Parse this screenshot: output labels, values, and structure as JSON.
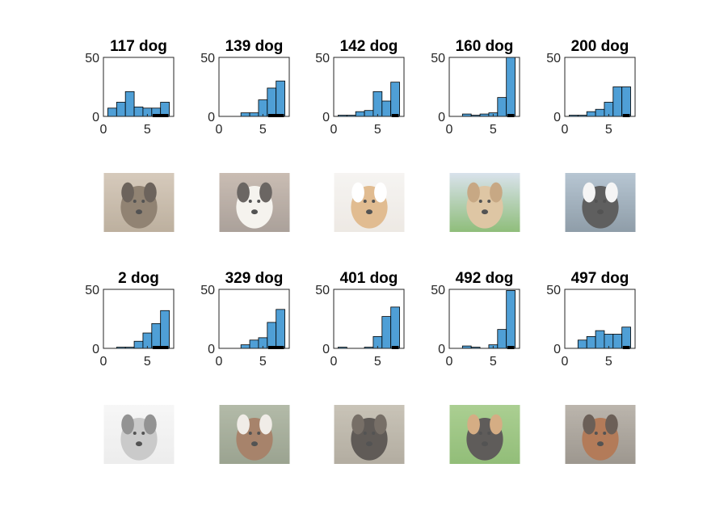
{
  "colors": {
    "bar_fill": "#4f9fd6",
    "bar_edge": "#000000",
    "axis": "#262626",
    "marker": "#000000"
  },
  "chart_data": [
    {
      "type": "bar",
      "title": "117 dog",
      "categories": [
        "1",
        "2",
        "3",
        "4",
        "5",
        "6",
        "7"
      ],
      "values": [
        7,
        12,
        21,
        8,
        7,
        7,
        12
      ],
      "marker": [
        6,
        7
      ],
      "ylim": [
        0,
        50
      ],
      "yticks": [
        0,
        50
      ],
      "xticks": [
        0,
        5
      ],
      "xlim": [
        0,
        8
      ],
      "photo": "wild-dog-photo"
    },
    {
      "type": "bar",
      "title": "139 dog",
      "categories": [
        "1",
        "2",
        "3",
        "4",
        "5",
        "6",
        "7"
      ],
      "values": [
        0,
        0,
        3,
        3,
        14,
        24,
        30
      ],
      "marker": [
        6,
        7
      ],
      "ylim": [
        0,
        50
      ],
      "yticks": [
        0,
        50
      ],
      "xticks": [
        0,
        5
      ],
      "xlim": [
        0,
        8
      ],
      "photo": "spaniel-lying-photo"
    },
    {
      "type": "bar",
      "title": "142 dog",
      "categories": [
        "1",
        "2",
        "3",
        "4",
        "5",
        "6",
        "7"
      ],
      "values": [
        1,
        1,
        4,
        5,
        21,
        13,
        29
      ],
      "marker": [
        7
      ],
      "ylim": [
        0,
        50
      ],
      "yticks": [
        0,
        50
      ],
      "xticks": [
        0,
        5
      ],
      "xlim": [
        0,
        8
      ],
      "photo": "terrier-closeup-photo"
    },
    {
      "type": "bar",
      "title": "160 dog",
      "categories": [
        "1",
        "2",
        "3",
        "4",
        "5",
        "6",
        "7"
      ],
      "values": [
        0,
        2,
        1,
        2,
        3,
        16,
        50
      ],
      "marker": [
        7
      ],
      "ylim": [
        0,
        50
      ],
      "yticks": [
        0,
        50
      ],
      "xticks": [
        0,
        5
      ],
      "xlim": [
        0,
        8
      ],
      "photo": "labrador-grass-photo"
    },
    {
      "type": "bar",
      "title": "200 dog",
      "categories": [
        "1",
        "2",
        "3",
        "4",
        "5",
        "6",
        "7"
      ],
      "values": [
        1,
        1,
        4,
        6,
        12,
        25,
        25
      ],
      "marker": [
        7
      ],
      "ylim": [
        0,
        50
      ],
      "yticks": [
        0,
        50
      ],
      "xticks": [
        0,
        5
      ],
      "xlim": [
        0,
        8
      ],
      "photo": "black-puppy-photo"
    },
    {
      "type": "bar",
      "title": "2 dog",
      "categories": [
        "1",
        "2",
        "3",
        "4",
        "5",
        "6",
        "7"
      ],
      "values": [
        0,
        1,
        1,
        6,
        13,
        21,
        32
      ],
      "marker": [
        6,
        7
      ],
      "ylim": [
        0,
        50
      ],
      "yticks": [
        0,
        50
      ],
      "xticks": [
        0,
        5
      ],
      "xlim": [
        0,
        8
      ],
      "photo": "grey-terrier-photo"
    },
    {
      "type": "bar",
      "title": "329 dog",
      "categories": [
        "1",
        "2",
        "3",
        "4",
        "5",
        "6",
        "7"
      ],
      "values": [
        0,
        0,
        3,
        7,
        9,
        22,
        33
      ],
      "marker": [
        6,
        7
      ],
      "ylim": [
        0,
        50
      ],
      "yticks": [
        0,
        50
      ],
      "xticks": [
        0,
        5
      ],
      "xlim": [
        0,
        8
      ],
      "photo": "spaniel-portrait-photo"
    },
    {
      "type": "bar",
      "title": "401 dog",
      "categories": [
        "1",
        "2",
        "3",
        "4",
        "5",
        "6",
        "7"
      ],
      "values": [
        1,
        0,
        0,
        1,
        10,
        27,
        35
      ],
      "marker": [
        7
      ],
      "ylim": [
        0,
        50
      ],
      "yticks": [
        0,
        50
      ],
      "xticks": [
        0,
        5
      ],
      "xlim": [
        0,
        8
      ],
      "photo": "black-dog-photo"
    },
    {
      "type": "bar",
      "title": "492 dog",
      "categories": [
        "1",
        "2",
        "3",
        "4",
        "5",
        "6",
        "7"
      ],
      "values": [
        0,
        2,
        1,
        0,
        3,
        16,
        49
      ],
      "marker": [
        7
      ],
      "ylim": [
        0,
        50
      ],
      "yticks": [
        0,
        50
      ],
      "xticks": [
        0,
        5
      ],
      "xlim": [
        0,
        8
      ],
      "photo": "australian-shepherd-photo"
    },
    {
      "type": "bar",
      "title": "497 dog",
      "categories": [
        "1",
        "2",
        "3",
        "4",
        "5",
        "6",
        "7"
      ],
      "values": [
        0,
        7,
        10,
        15,
        12,
        12,
        18
      ],
      "marker": [
        7
      ],
      "ylim": [
        0,
        50
      ],
      "yticks": [
        0,
        50
      ],
      "xticks": [
        0,
        5
      ],
      "xlim": [
        0,
        8
      ],
      "photo": "bloodhound-photo"
    }
  ]
}
